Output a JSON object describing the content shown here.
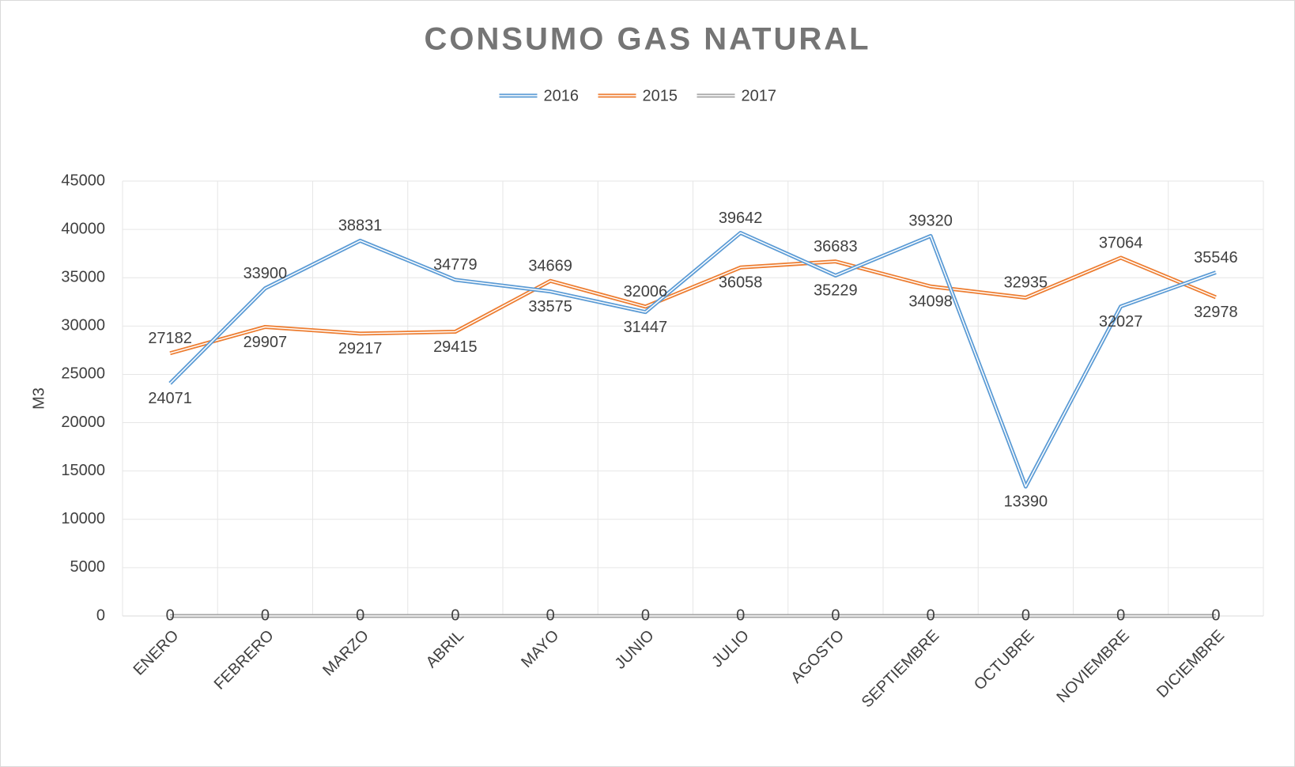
{
  "chart_data": {
    "type": "line",
    "title": "CONSUMO GAS NATURAL",
    "y_label": "M3",
    "categories": [
      "ENERO",
      "FEBRERO",
      "MARZO",
      "ABRIL",
      "MAYO",
      "JUNIO",
      "JULIO",
      "AGOSTO",
      "SEPTIEMBRE",
      "OCTUBRE",
      "NOVIEMBRE",
      "DICIEMBRE"
    ],
    "series": [
      {
        "name": "2016",
        "color": "#5b9bd5",
        "values": [
          24071,
          33900,
          38831,
          34779,
          33575,
          31447,
          39642,
          35229,
          39320,
          13390,
          32027,
          35546
        ]
      },
      {
        "name": "2015",
        "color": "#ed7d31",
        "values": [
          27182,
          29907,
          29217,
          29415,
          34669,
          32006,
          36058,
          36683,
          34098,
          32935,
          37064,
          32978
        ]
      },
      {
        "name": "2017",
        "color": "#a5a5a5",
        "values": [
          0,
          0,
          0,
          0,
          0,
          0,
          0,
          0,
          0,
          0,
          0,
          0
        ]
      }
    ],
    "ylim": [
      0,
      45000
    ],
    "yticks": [
      0,
      5000,
      10000,
      15000,
      20000,
      25000,
      30000,
      35000,
      40000,
      45000
    ],
    "grid": true,
    "legend": "top"
  }
}
